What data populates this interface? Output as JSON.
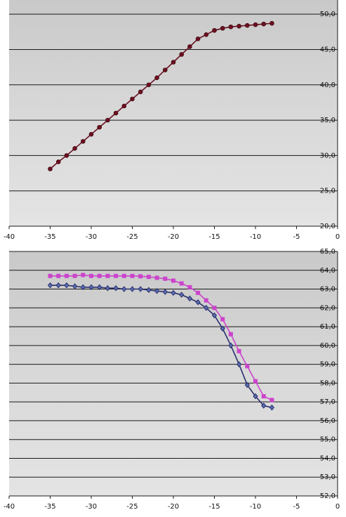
{
  "chart_data": [
    {
      "type": "line",
      "title": "",
      "xlabel": "",
      "ylabel": "",
      "xlim": [
        -40,
        0
      ],
      "ylim": [
        20,
        52
      ],
      "x_ticks": [
        "-40",
        "-35",
        "-30",
        "-25",
        "-20",
        "-15",
        "-10",
        "-5",
        "0"
      ],
      "y_ticks": [
        "20,0",
        "25,0",
        "30,0",
        "35,0",
        "40,0",
        "45,0",
        "50,0"
      ],
      "y_axis_side": "right",
      "grid": "horizontal",
      "series": [
        {
          "color": "#6b1020",
          "marker": "circle",
          "x": [
            -35,
            -34,
            -33,
            -32,
            -31,
            -30,
            -29,
            -28,
            -27,
            -26,
            -25,
            -24,
            -23,
            -22,
            -21,
            -20,
            -19,
            -18,
            -17,
            -16,
            -15,
            -14,
            -13,
            -12,
            -11,
            -10,
            -9,
            -8
          ],
          "y": [
            28.1,
            29.1,
            30.0,
            31.0,
            32.0,
            33.0,
            34.0,
            35.0,
            36.0,
            37.0,
            38.0,
            39.0,
            40.0,
            41.0,
            42.1,
            43.2,
            44.3,
            45.4,
            46.5,
            47.1,
            47.7,
            48.0,
            48.2,
            48.3,
            48.4,
            48.5,
            48.6,
            48.7
          ]
        }
      ]
    },
    {
      "type": "line",
      "title": "",
      "xlabel": "",
      "ylabel": "",
      "xlim": [
        -40,
        0
      ],
      "ylim": [
        52,
        65
      ],
      "x_ticks": [
        "-40",
        "-35",
        "-30",
        "-25",
        "-20",
        "-15",
        "-10",
        "-5",
        "0"
      ],
      "y_ticks": [
        "52,0",
        "53,0",
        "54,0",
        "55,0",
        "56,0",
        "57,0",
        "58,0",
        "59,0",
        "60,0",
        "61,0",
        "62,0",
        "63,0",
        "64,0",
        "65,0"
      ],
      "y_axis_side": "right",
      "grid": "horizontal",
      "series": [
        {
          "color": "#cc44cc",
          "marker": "square",
          "x": [
            -35,
            -34,
            -33,
            -32,
            -31,
            -30,
            -29,
            -28,
            -27,
            -26,
            -25,
            -24,
            -23,
            -22,
            -21,
            -20,
            -19,
            -18,
            -17,
            -16,
            -15,
            -14,
            -13,
            -12,
            -11,
            -10,
            -9,
            -8
          ],
          "y": [
            63.7,
            63.7,
            63.7,
            63.7,
            63.75,
            63.7,
            63.7,
            63.7,
            63.7,
            63.7,
            63.7,
            63.68,
            63.65,
            63.6,
            63.55,
            63.45,
            63.3,
            63.1,
            62.8,
            62.4,
            62.0,
            61.4,
            60.6,
            59.7,
            58.9,
            58.1,
            57.3,
            57.1
          ]
        },
        {
          "color": "#2a2f6e",
          "marker": "diamond",
          "x": [
            -35,
            -34,
            -33,
            -32,
            -31,
            -30,
            -29,
            -28,
            -27,
            -26,
            -25,
            -24,
            -23,
            -22,
            -21,
            -20,
            -19,
            -18,
            -17,
            -16,
            -15,
            -14,
            -13,
            -12,
            -11,
            -10,
            -9,
            -8
          ],
          "y": [
            63.2,
            63.2,
            63.2,
            63.15,
            63.1,
            63.1,
            63.1,
            63.05,
            63.05,
            63.0,
            63.0,
            63.0,
            62.95,
            62.9,
            62.85,
            62.8,
            62.7,
            62.5,
            62.3,
            62.0,
            61.6,
            60.9,
            60.0,
            59.0,
            57.9,
            57.3,
            56.8,
            56.7
          ]
        }
      ]
    }
  ]
}
